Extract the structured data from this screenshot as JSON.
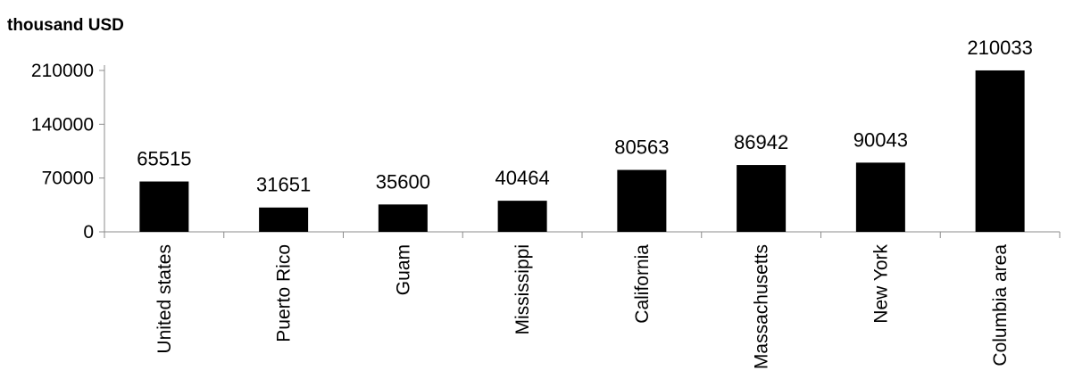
{
  "chart_data": {
    "type": "bar",
    "unit_label": "thousand USD",
    "categories": [
      "United states",
      "Puerto Rico",
      "Guam",
      "Mississippi",
      "California",
      "Massachusetts",
      "New York",
      "Columbia area"
    ],
    "values": [
      65515,
      31651,
      35600,
      40464,
      80563,
      86942,
      90043,
      210033
    ],
    "ylim": [
      0,
      210000
    ],
    "yticks": [
      0,
      70000,
      140000,
      210000
    ],
    "grid": false,
    "legend": "none",
    "bar_color": "#000000"
  }
}
